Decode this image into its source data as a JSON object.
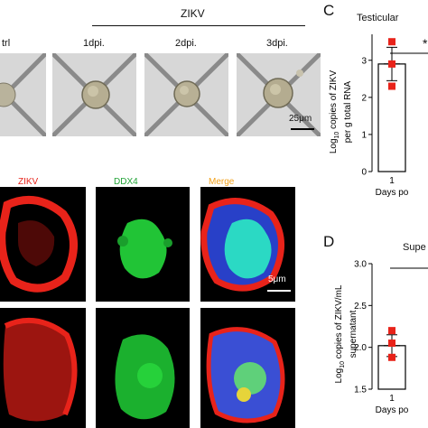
{
  "top": {
    "group_label": "ZIKV",
    "col_labels": [
      "trl",
      "1dpi.",
      "2dpi.",
      "3dpi."
    ],
    "scale_bar": "25μm"
  },
  "fluor": {
    "channels": [
      {
        "label": "ZIKV",
        "color": "#e8231a"
      },
      {
        "label": "DDX4",
        "color": "#21a336"
      },
      {
        "label": "Merge",
        "color": "#f2a21d"
      }
    ],
    "scale_bar": "5μm"
  },
  "panel_c": {
    "letter": "C",
    "title": "Testicular",
    "ylabel_main": "Log",
    "ylabel_sub": "10",
    "ylabel_rest": " copies of ZIKV",
    "ylabel_line2": "per g total RNA",
    "significance": "*",
    "xtick": "1",
    "xlabel": "Days po"
  },
  "panel_d": {
    "letter": "D",
    "title": "Supe",
    "ylabel_main": "Log",
    "ylabel_sub": "10",
    "ylabel_rest": " copies of ZIKV/mL",
    "ylabel_line2": "supernatant",
    "xtick": "1",
    "xlabel": "Days po"
  },
  "chart_data": [
    {
      "type": "bar",
      "categories": [
        "1"
      ],
      "values": [
        2.9
      ],
      "errors": [
        0.45
      ],
      "points": [
        [
          3.5,
          2.9,
          2.3
        ]
      ],
      "ylim": [
        0,
        3.7
      ],
      "yticks": [
        0,
        1,
        2,
        3
      ],
      "title": "Testicular",
      "xlabel": "Days po",
      "ylabel": "Log10 copies of ZIKV per g total RNA",
      "point_color": "#e8231a"
    },
    {
      "type": "bar",
      "categories": [
        "1"
      ],
      "values": [
        2.02
      ],
      "errors": [
        0.13
      ],
      "points": [
        [
          2.2,
          2.05,
          1.88
        ]
      ],
      "ylim": [
        1.5,
        3.0
      ],
      "yticks": [
        1.5,
        2.0,
        2.5,
        3.0
      ],
      "title": "Supe",
      "xlabel": "Days po",
      "ylabel": "Log10 copies of ZIKV/mL supernatant",
      "point_color": "#e8231a"
    }
  ]
}
